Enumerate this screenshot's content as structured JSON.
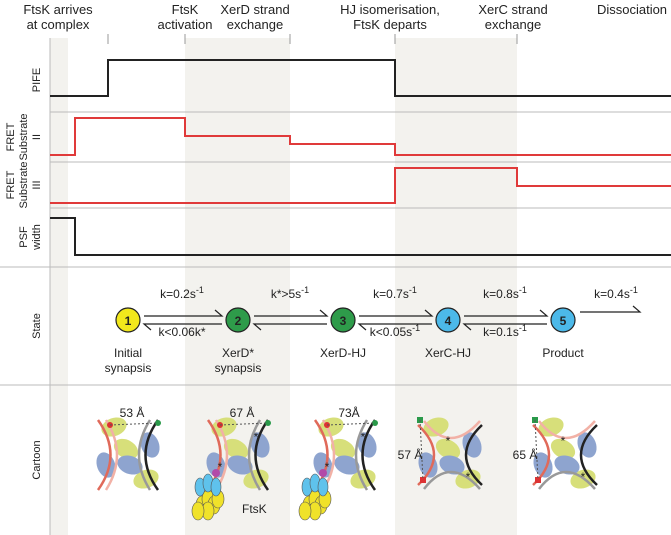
{
  "stages": [
    {
      "lines": [
        "FtsK arrives",
        "at complex"
      ]
    },
    {
      "lines": [
        "FtsK",
        "activation"
      ]
    },
    {
      "lines": [
        "XerD strand",
        "exchange"
      ]
    },
    {
      "lines": [
        "HJ isomerisation,",
        "FtsK departs"
      ]
    },
    {
      "lines": [
        "XerC strand",
        "exchange"
      ]
    },
    {
      "lines": [
        "Dissociation"
      ]
    }
  ],
  "rows": [
    {
      "lines": [
        "PIFE"
      ]
    },
    {
      "lines": [
        "FRET",
        "Substrate",
        "II"
      ]
    },
    {
      "lines": [
        "FRET",
        "Substrate",
        "III"
      ]
    },
    {
      "lines": [
        "PSF",
        "width"
      ]
    },
    {
      "lines": [
        "State"
      ]
    },
    {
      "lines": [
        "Cartoon"
      ]
    }
  ],
  "states": [
    {
      "number": "1",
      "lines": [
        "Initial",
        "synapsis"
      ]
    },
    {
      "number": "2",
      "lines": [
        "XerD*",
        "synapsis"
      ]
    },
    {
      "number": "3",
      "lines": [
        "XerD-HJ"
      ]
    },
    {
      "number": "4",
      "lines": [
        "XerC-HJ"
      ]
    },
    {
      "number": "5",
      "lines": [
        "Product"
      ]
    }
  ],
  "rates": [
    {
      "text": "k=0.2s",
      "exp": "-1"
    },
    {
      "text": "k<0.06k*"
    },
    {
      "text": "k*>5s",
      "exp": "-1"
    },
    {
      "text": "k=0.7s",
      "exp": "-1"
    },
    {
      "text": "k<0.05s",
      "exp": "-1"
    },
    {
      "text": "k=0.8s",
      "exp": "-1"
    },
    {
      "text": "k=0.1s",
      "exp": "-1"
    },
    {
      "text": "k=0.4s",
      "exp": "-1"
    }
  ],
  "cartoon": {
    "distances": [
      "53 Å",
      "67 Å",
      "73Å",
      "57 Å",
      "65 Å"
    ],
    "motor": "FtsK",
    "asterisk": "*"
  }
}
